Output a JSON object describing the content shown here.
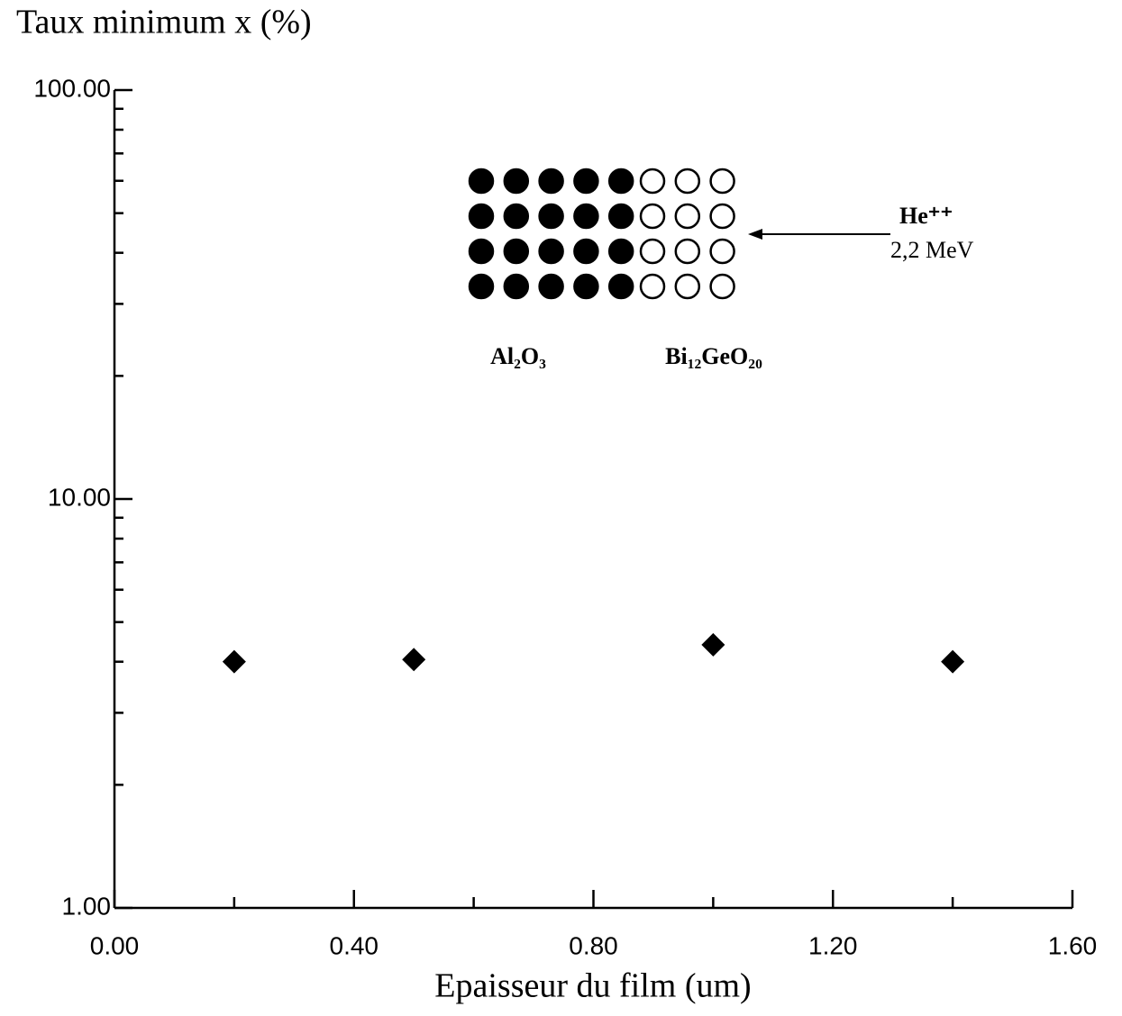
{
  "chart_data": {
    "type": "scatter",
    "y_label": "Taux minimum x (%)",
    "x_label": "Epaisseur du film (um)",
    "x": [
      0.2,
      0.5,
      1.0,
      1.4
    ],
    "values": [
      4.0,
      4.05,
      4.4,
      4.0
    ],
    "color": "#000000",
    "marker": "diamond",
    "xlim": [
      0,
      1.6
    ],
    "xticks": [
      {
        "value": 0,
        "label": "0.00"
      },
      {
        "value": 0.4,
        "label": "0.40"
      },
      {
        "value": 0.8,
        "label": "0.80"
      },
      {
        "value": 1.2,
        "label": "1.20"
      },
      {
        "value": 1.6,
        "label": "1.60"
      }
    ],
    "xminorticks": [
      0.2,
      0.6,
      1.0,
      1.4
    ],
    "ylim": [
      1,
      100
    ],
    "yticks": [
      {
        "value": 1,
        "label": "1.00"
      },
      {
        "value": 10,
        "label": "10.00"
      },
      {
        "value": 100,
        "label": "100.00"
      }
    ],
    "yminorticks": [
      2,
      3,
      4,
      5,
      6,
      7,
      8,
      9,
      20,
      30,
      40,
      50,
      60,
      70,
      80,
      90
    ],
    "y_scale": "log",
    "annotations": [
      "Al₂O₃",
      "Bi₁₂GeO₂₀",
      "He⁺⁺",
      "2,2 MeV"
    ]
  }
}
